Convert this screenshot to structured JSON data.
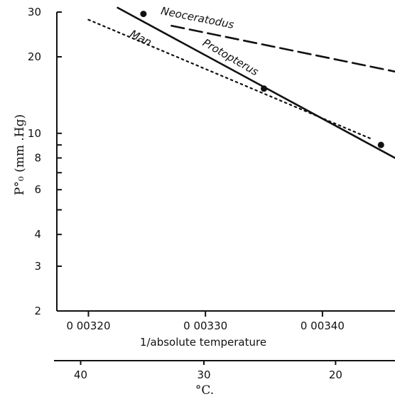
{
  "chart_data": {
    "type": "line",
    "ylabel": "P°₀ (mm .Hg)",
    "xlabel": "1/absolute temperature",
    "secondary_xlabel": "°C.",
    "xlim": [
      0.003173,
      0.003462
    ],
    "ylim": [
      2,
      30
    ],
    "y_scale": "log",
    "y_ticks": [
      2,
      3,
      4,
      5,
      6,
      7,
      8,
      9,
      10,
      20,
      30
    ],
    "y_tick_labels": [
      "2",
      "3",
      "4",
      "",
      "6",
      "",
      "8",
      "",
      "10",
      "20",
      "30"
    ],
    "x_ticks": [
      0.0032,
      0.0033,
      0.0034
    ],
    "x_tick_labels": [
      "0 00320",
      "0 00330",
      "0 00340"
    ],
    "celsius_ticks": [
      40,
      30,
      20
    ],
    "celsius_tick_labels": [
      "40",
      "30",
      "20"
    ],
    "series": [
      {
        "name": "Neoceratodus",
        "style": "dashed",
        "x": [
          0.003271,
          0.003462
        ],
        "y": [
          26.5,
          17.5
        ]
      },
      {
        "name": "Protopterus",
        "style": "solid",
        "x": [
          0.003225,
          0.003462
        ],
        "y": [
          31.2,
          8.0
        ]
      },
      {
        "name": "Man",
        "style": "dotted",
        "x": [
          0.0032,
          0.003442
        ],
        "y": [
          28.0,
          9.5
        ]
      }
    ],
    "points": [
      {
        "x": 0.003247,
        "y": 29.5
      },
      {
        "x": 0.00335,
        "y": 15.0
      },
      {
        "x": 0.00345,
        "y": 9.0
      }
    ]
  }
}
